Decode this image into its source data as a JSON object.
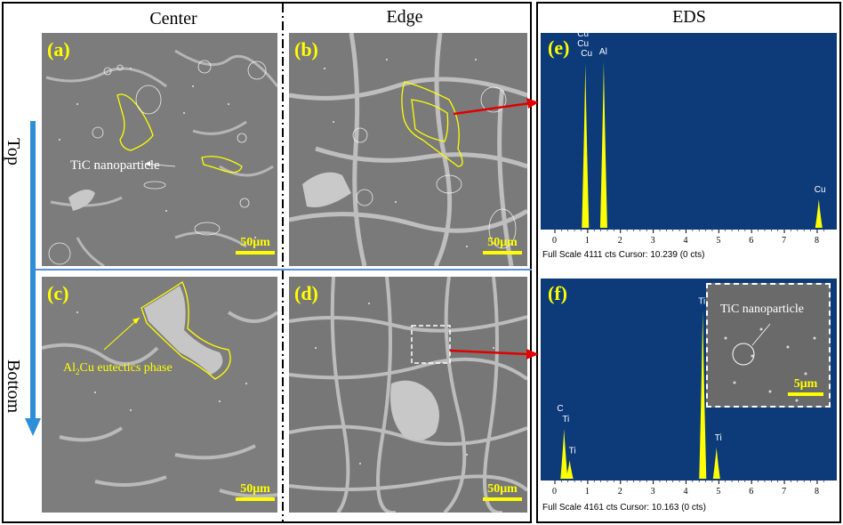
{
  "columns": {
    "center": "Center",
    "edge": "Edge",
    "eds": "EDS"
  },
  "side_labels": {
    "top": "Top",
    "bottom": "Bottom"
  },
  "panels": {
    "a": {
      "label": "(a)",
      "scale": "50μm",
      "annotation": "TiC nanoparticle"
    },
    "b": {
      "label": "(b)",
      "scale": "50μm"
    },
    "c": {
      "label": "(c)",
      "scale": "50μm",
      "annotation_prefix": "Al",
      "annotation_sub": "2",
      "annotation_suffix": "Cu eutectics phase"
    },
    "d": {
      "label": "(d)",
      "scale": "50μm"
    }
  },
  "eds_e": {
    "label": "(e)",
    "footer": "Full Scale 4111 cts Cursor: 10.239  (0 cts)",
    "peak_labels": [
      "Cu",
      "Cu",
      "Cu",
      "Al",
      "Cu"
    ]
  },
  "eds_f": {
    "label": "(f)",
    "footer": "Full Scale 4161 cts Cursor: 10.163  (0 cts)",
    "peak_labels": [
      "Ti",
      "C",
      "Ti",
      "Ti",
      "Ti"
    ],
    "inset_annotation": "TiC nanoparticle",
    "inset_scale": "5μm"
  },
  "x_ticks": [
    "0",
    "1",
    "2",
    "3",
    "4",
    "5",
    "6",
    "7",
    "8"
  ],
  "chart_data": [
    {
      "type": "line",
      "title": "",
      "xlim": [
        0,
        8.3
      ],
      "xticks": [
        0,
        1,
        2,
        3,
        4,
        5,
        6,
        7,
        8
      ],
      "peaks": [
        {
          "x": 0.93,
          "y": 0.92,
          "labels": [
            "Cu",
            "Cu",
            "Cu"
          ]
        },
        {
          "x": 1.49,
          "y": 0.93,
          "labels": [
            "Al"
          ]
        },
        {
          "x": 8.05,
          "y": 0.16,
          "labels": [
            "Cu"
          ]
        }
      ]
    },
    {
      "type": "line",
      "title": "",
      "xlim": [
        0,
        8.3
      ],
      "xticks": [
        0,
        1,
        2,
        3,
        4,
        5,
        6,
        7,
        8
      ],
      "peaks": [
        {
          "x": 0.28,
          "y": 0.27,
          "labels": [
            "C",
            "Ti"
          ]
        },
        {
          "x": 0.45,
          "y": 0.1,
          "labels": [
            "Ti"
          ]
        },
        {
          "x": 4.51,
          "y": 0.91,
          "labels": [
            "Ti"
          ]
        },
        {
          "x": 4.93,
          "y": 0.17,
          "labels": [
            "Ti"
          ]
        }
      ]
    }
  ],
  "colors": {
    "highlight": "#ffff00",
    "eds_bg": "#0d3b7a",
    "arrow": "#e00000",
    "divider": "#5b8fd6"
  }
}
